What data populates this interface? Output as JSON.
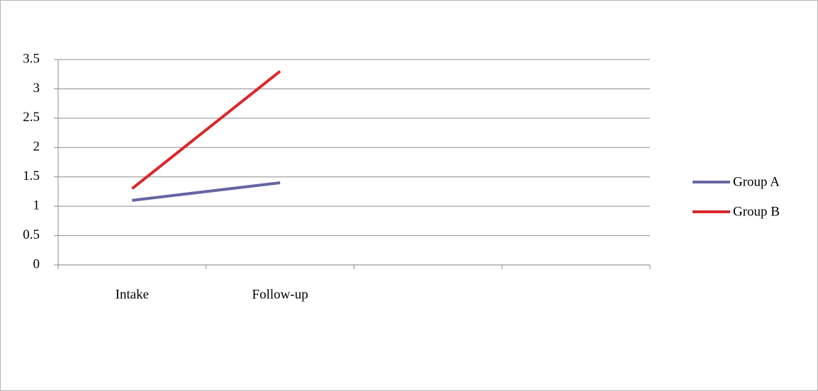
{
  "chart_data": {
    "type": "line",
    "categories": [
      "Intake",
      "Follow-up",
      null,
      null
    ],
    "series": [
      {
        "name": "Group A",
        "color": "#6566a0",
        "values": [
          1.1,
          1.4,
          null,
          null
        ]
      },
      {
        "name": "Group B",
        "color": "#d9282c",
        "values": [
          1.3,
          3.3,
          null,
          null
        ]
      }
    ],
    "ylim": [
      0,
      3.5
    ],
    "yticks": [
      0,
      0.5,
      1,
      1.5,
      2,
      2.5,
      3,
      3.5
    ],
    "grid": true,
    "legend": "right"
  }
}
